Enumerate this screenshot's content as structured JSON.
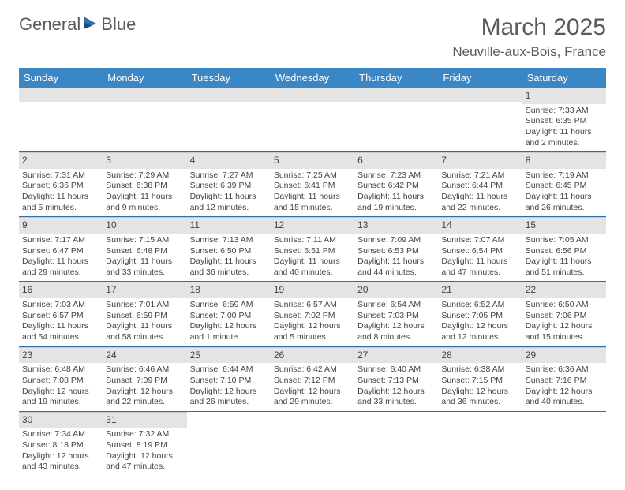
{
  "brand": {
    "part1": "General",
    "part2": "Blue"
  },
  "title": "March 2025",
  "location": "Neuville-aux-Bois, France",
  "colors": {
    "header_bg": "#3b86c4",
    "rule": "#2f6fa8",
    "dayhead_bg": "#e4e4e4",
    "text": "#444444"
  },
  "weekdays": [
    "Sunday",
    "Monday",
    "Tuesday",
    "Wednesday",
    "Thursday",
    "Friday",
    "Saturday"
  ],
  "weeks": [
    [
      null,
      null,
      null,
      null,
      null,
      null,
      {
        "n": "1",
        "sunrise": "Sunrise: 7:33 AM",
        "sunset": "Sunset: 6:35 PM",
        "daylight": "Daylight: 11 hours and 2 minutes."
      }
    ],
    [
      {
        "n": "2",
        "sunrise": "Sunrise: 7:31 AM",
        "sunset": "Sunset: 6:36 PM",
        "daylight": "Daylight: 11 hours and 5 minutes."
      },
      {
        "n": "3",
        "sunrise": "Sunrise: 7:29 AM",
        "sunset": "Sunset: 6:38 PM",
        "daylight": "Daylight: 11 hours and 9 minutes."
      },
      {
        "n": "4",
        "sunrise": "Sunrise: 7:27 AM",
        "sunset": "Sunset: 6:39 PM",
        "daylight": "Daylight: 11 hours and 12 minutes."
      },
      {
        "n": "5",
        "sunrise": "Sunrise: 7:25 AM",
        "sunset": "Sunset: 6:41 PM",
        "daylight": "Daylight: 11 hours and 15 minutes."
      },
      {
        "n": "6",
        "sunrise": "Sunrise: 7:23 AM",
        "sunset": "Sunset: 6:42 PM",
        "daylight": "Daylight: 11 hours and 19 minutes."
      },
      {
        "n": "7",
        "sunrise": "Sunrise: 7:21 AM",
        "sunset": "Sunset: 6:44 PM",
        "daylight": "Daylight: 11 hours and 22 minutes."
      },
      {
        "n": "8",
        "sunrise": "Sunrise: 7:19 AM",
        "sunset": "Sunset: 6:45 PM",
        "daylight": "Daylight: 11 hours and 26 minutes."
      }
    ],
    [
      {
        "n": "9",
        "sunrise": "Sunrise: 7:17 AM",
        "sunset": "Sunset: 6:47 PM",
        "daylight": "Daylight: 11 hours and 29 minutes."
      },
      {
        "n": "10",
        "sunrise": "Sunrise: 7:15 AM",
        "sunset": "Sunset: 6:48 PM",
        "daylight": "Daylight: 11 hours and 33 minutes."
      },
      {
        "n": "11",
        "sunrise": "Sunrise: 7:13 AM",
        "sunset": "Sunset: 6:50 PM",
        "daylight": "Daylight: 11 hours and 36 minutes."
      },
      {
        "n": "12",
        "sunrise": "Sunrise: 7:11 AM",
        "sunset": "Sunset: 6:51 PM",
        "daylight": "Daylight: 11 hours and 40 minutes."
      },
      {
        "n": "13",
        "sunrise": "Sunrise: 7:09 AM",
        "sunset": "Sunset: 6:53 PM",
        "daylight": "Daylight: 11 hours and 44 minutes."
      },
      {
        "n": "14",
        "sunrise": "Sunrise: 7:07 AM",
        "sunset": "Sunset: 6:54 PM",
        "daylight": "Daylight: 11 hours and 47 minutes."
      },
      {
        "n": "15",
        "sunrise": "Sunrise: 7:05 AM",
        "sunset": "Sunset: 6:56 PM",
        "daylight": "Daylight: 11 hours and 51 minutes."
      }
    ],
    [
      {
        "n": "16",
        "sunrise": "Sunrise: 7:03 AM",
        "sunset": "Sunset: 6:57 PM",
        "daylight": "Daylight: 11 hours and 54 minutes."
      },
      {
        "n": "17",
        "sunrise": "Sunrise: 7:01 AM",
        "sunset": "Sunset: 6:59 PM",
        "daylight": "Daylight: 11 hours and 58 minutes."
      },
      {
        "n": "18",
        "sunrise": "Sunrise: 6:59 AM",
        "sunset": "Sunset: 7:00 PM",
        "daylight": "Daylight: 12 hours and 1 minute."
      },
      {
        "n": "19",
        "sunrise": "Sunrise: 6:57 AM",
        "sunset": "Sunset: 7:02 PM",
        "daylight": "Daylight: 12 hours and 5 minutes."
      },
      {
        "n": "20",
        "sunrise": "Sunrise: 6:54 AM",
        "sunset": "Sunset: 7:03 PM",
        "daylight": "Daylight: 12 hours and 8 minutes."
      },
      {
        "n": "21",
        "sunrise": "Sunrise: 6:52 AM",
        "sunset": "Sunset: 7:05 PM",
        "daylight": "Daylight: 12 hours and 12 minutes."
      },
      {
        "n": "22",
        "sunrise": "Sunrise: 6:50 AM",
        "sunset": "Sunset: 7:06 PM",
        "daylight": "Daylight: 12 hours and 15 minutes."
      }
    ],
    [
      {
        "n": "23",
        "sunrise": "Sunrise: 6:48 AM",
        "sunset": "Sunset: 7:08 PM",
        "daylight": "Daylight: 12 hours and 19 minutes."
      },
      {
        "n": "24",
        "sunrise": "Sunrise: 6:46 AM",
        "sunset": "Sunset: 7:09 PM",
        "daylight": "Daylight: 12 hours and 22 minutes."
      },
      {
        "n": "25",
        "sunrise": "Sunrise: 6:44 AM",
        "sunset": "Sunset: 7:10 PM",
        "daylight": "Daylight: 12 hours and 26 minutes."
      },
      {
        "n": "26",
        "sunrise": "Sunrise: 6:42 AM",
        "sunset": "Sunset: 7:12 PM",
        "daylight": "Daylight: 12 hours and 29 minutes."
      },
      {
        "n": "27",
        "sunrise": "Sunrise: 6:40 AM",
        "sunset": "Sunset: 7:13 PM",
        "daylight": "Daylight: 12 hours and 33 minutes."
      },
      {
        "n": "28",
        "sunrise": "Sunrise: 6:38 AM",
        "sunset": "Sunset: 7:15 PM",
        "daylight": "Daylight: 12 hours and 36 minutes."
      },
      {
        "n": "29",
        "sunrise": "Sunrise: 6:36 AM",
        "sunset": "Sunset: 7:16 PM",
        "daylight": "Daylight: 12 hours and 40 minutes."
      }
    ],
    [
      {
        "n": "30",
        "sunrise": "Sunrise: 7:34 AM",
        "sunset": "Sunset: 8:18 PM",
        "daylight": "Daylight: 12 hours and 43 minutes."
      },
      {
        "n": "31",
        "sunrise": "Sunrise: 7:32 AM",
        "sunset": "Sunset: 8:19 PM",
        "daylight": "Daylight: 12 hours and 47 minutes."
      },
      null,
      null,
      null,
      null,
      null
    ]
  ]
}
